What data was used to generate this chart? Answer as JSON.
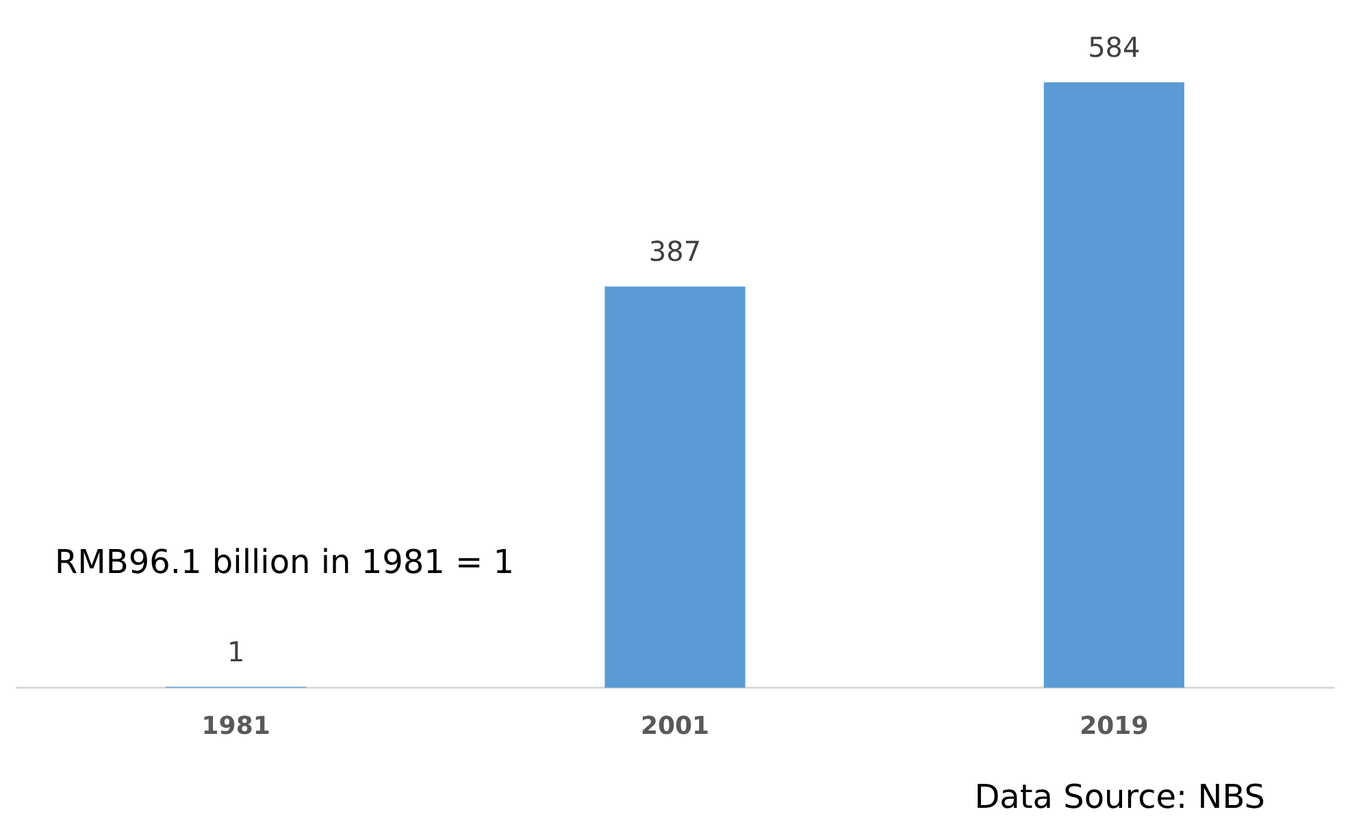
{
  "chart_data": {
    "type": "bar",
    "categories": [
      "1981",
      "2001",
      "2019"
    ],
    "values": [
      1,
      387,
      584
    ],
    "color": "#5b9bd5",
    "data_labels": true,
    "legend": false,
    "annotations": [
      "RMB96.1 billion in 1981 = 1",
      "Data Source: NBS"
    ]
  }
}
